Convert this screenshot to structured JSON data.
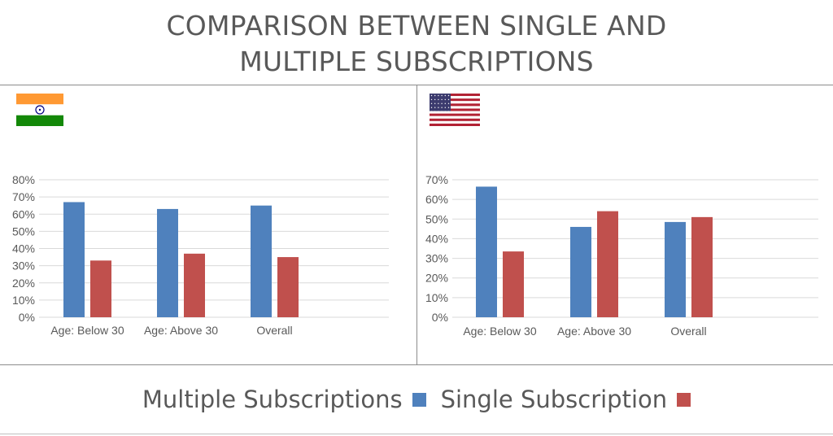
{
  "title": {
    "line1": "COMPARISON BETWEEN SINGLE AND",
    "line2": "MULTIPLE SUBSCRIPTIONS"
  },
  "colors": {
    "multiple": "#4f81bd",
    "single": "#c0504d",
    "axis_text": "#595959",
    "grid": "#d9d9d9"
  },
  "flags": {
    "left": "india-flag-icon",
    "right": "usa-flag-icon"
  },
  "legend": [
    {
      "label": "Multiple Subscriptions",
      "color": "#4f81bd"
    },
    {
      "label": "Single Subscription",
      "color": "#c0504d"
    }
  ],
  "chart_data": [
    {
      "type": "bar",
      "categories": [
        "Age: Below 30",
        "Age: Above 30",
        "Overall"
      ],
      "series": [
        {
          "name": "Multiple Subscriptions",
          "values": [
            67,
            63,
            65
          ]
        },
        {
          "name": "Single Subscription",
          "values": [
            33,
            37,
            35
          ]
        }
      ],
      "ylim": [
        0,
        80
      ],
      "yticks": [
        "0%",
        "10%",
        "20%",
        "30%",
        "40%",
        "50%",
        "60%",
        "70%",
        "80%"
      ],
      "grid": true
    },
    {
      "type": "bar",
      "categories": [
        "Age: Below 30",
        "Age: Above 30",
        "Overall"
      ],
      "series": [
        {
          "name": "Multiple Subscriptions",
          "values": [
            66.5,
            46,
            48.5
          ]
        },
        {
          "name": "Single Subscription",
          "values": [
            33.5,
            54,
            51
          ]
        }
      ],
      "ylim": [
        0,
        70
      ],
      "yticks": [
        "0%",
        "10%",
        "20%",
        "30%",
        "40%",
        "50%",
        "60%",
        "70%"
      ],
      "grid": true
    }
  ]
}
